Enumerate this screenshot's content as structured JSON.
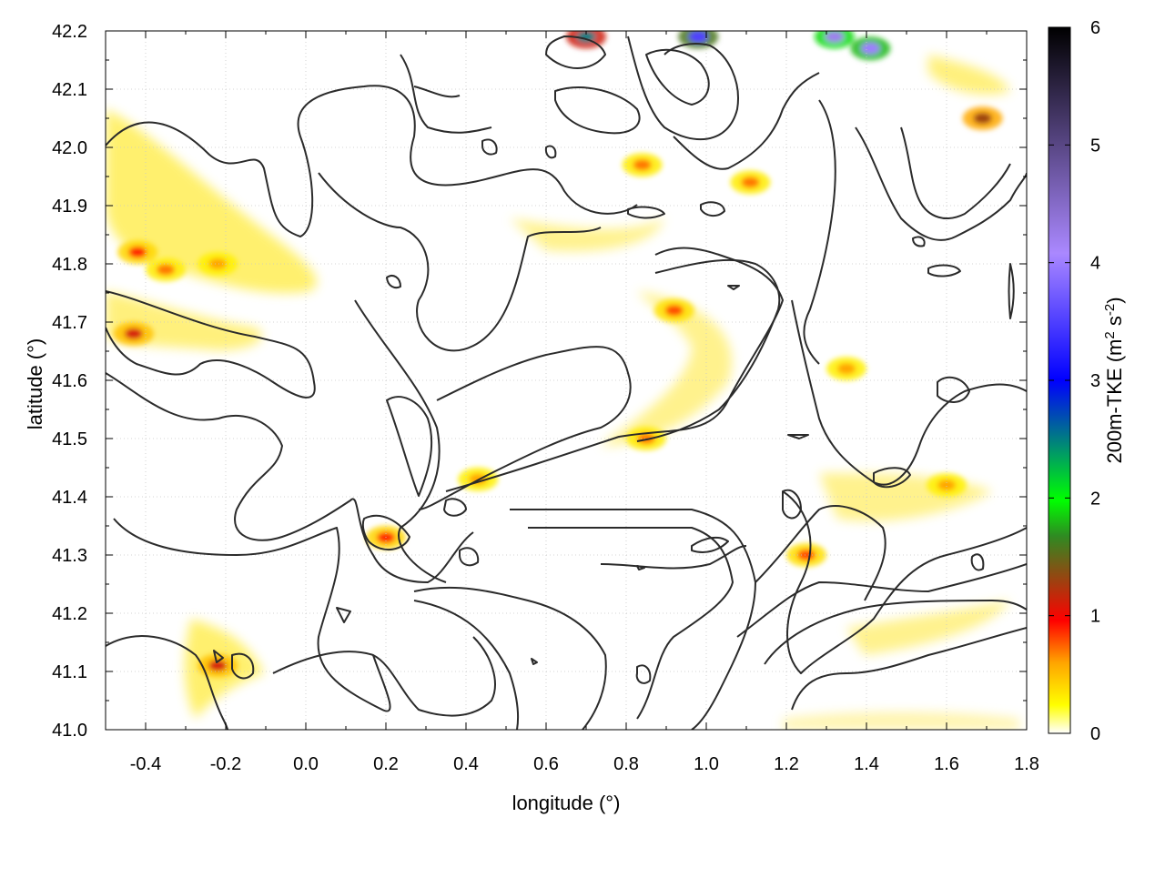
{
  "chart_data": {
    "type": "heatmap",
    "title": "",
    "xlabel": "longitude (°)",
    "ylabel": "latitude (°)",
    "xlim": [
      -0.5,
      1.8
    ],
    "ylim": [
      41.0,
      42.2
    ],
    "xticks": [
      -0.4,
      -0.2,
      0.0,
      0.2,
      0.4,
      0.6,
      0.8,
      1.0,
      1.2,
      1.4,
      1.6,
      1.8
    ],
    "xtick_labels": [
      "-0.4",
      "-0.2",
      "0.0",
      "0.2",
      "0.4",
      "0.6",
      "0.8",
      "1.0",
      "1.2",
      "1.4",
      "1.6",
      "1.8"
    ],
    "yticks": [
      41.0,
      41.1,
      41.2,
      41.3,
      41.4,
      41.5,
      41.6,
      41.7,
      41.8,
      41.9,
      42.0,
      42.1,
      42.2
    ],
    "ytick_labels": [
      "41.0",
      "41.1",
      "41.2",
      "41.3",
      "41.4",
      "41.5",
      "41.6",
      "41.7",
      "41.8",
      "41.9",
      "42.0",
      "42.1",
      "42.2"
    ],
    "grid": true,
    "colorbar": {
      "label_main": "200m-TKE (m",
      "label_sup1": "2",
      "label_mid": " s",
      "label_sup2": "-2",
      "label_end": ")",
      "range": [
        0,
        6
      ],
      "ticks": [
        0,
        1,
        2,
        3,
        4,
        5,
        6
      ],
      "tick_labels": [
        "0",
        "1",
        "2",
        "3",
        "4",
        "5",
        "6"
      ],
      "colors": [
        "#ffffff",
        "#ffff00",
        "#ffa500",
        "#ff0000",
        "#2e8b22",
        "#00ff00",
        "#0000ff",
        "#aa88ff",
        "#000000"
      ],
      "color_stops": [
        0,
        0.04,
        0.1,
        0.16,
        0.28,
        0.33,
        0.5,
        0.68,
        1.0
      ]
    },
    "hotspots": [
      {
        "lon": -0.42,
        "lat": 41.82,
        "tke": 0.9
      },
      {
        "lon": -0.35,
        "lat": 41.79,
        "tke": 0.7
      },
      {
        "lon": -0.22,
        "lat": 41.8,
        "tke": 0.6
      },
      {
        "lon": -0.43,
        "lat": 41.68,
        "tke": 1.1
      },
      {
        "lon": -0.22,
        "lat": 41.11,
        "tke": 1.1
      },
      {
        "lon": 0.2,
        "lat": 41.33,
        "tke": 0.9
      },
      {
        "lon": 0.92,
        "lat": 41.72,
        "tke": 0.8
      },
      {
        "lon": 1.69,
        "lat": 42.05,
        "tke": 1.3
      },
      {
        "lon": 1.35,
        "lat": 41.62,
        "tke": 0.6
      },
      {
        "lon": 1.25,
        "lat": 41.3,
        "tke": 0.8
      },
      {
        "lon": 0.85,
        "lat": 41.5,
        "tke": 0.7
      },
      {
        "lon": 0.43,
        "lat": 41.43,
        "tke": 0.6
      },
      {
        "lon": 1.6,
        "lat": 41.42,
        "tke": 0.6
      },
      {
        "lon": 0.84,
        "lat": 41.97,
        "tke": 0.7
      },
      {
        "lon": 1.11,
        "lat": 41.94,
        "tke": 0.7
      },
      {
        "lon": 1.41,
        "lat": 42.17,
        "tke": 4.0
      },
      {
        "lon": 1.32,
        "lat": 42.19,
        "tke": 4.2
      },
      {
        "lon": 0.7,
        "lat": 42.19,
        "tke": 2.5
      },
      {
        "lon": 0.98,
        "lat": 42.19,
        "tke": 3.5
      }
    ]
  }
}
